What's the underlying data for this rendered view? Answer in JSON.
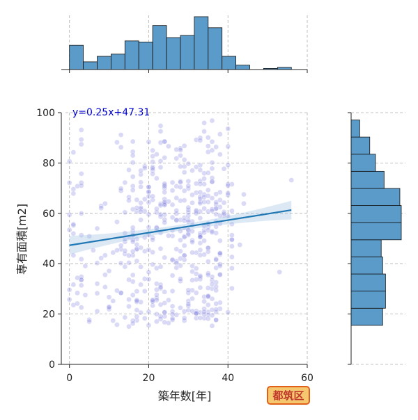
{
  "chart_data": {
    "type": "scatter",
    "xlabel": "築年数[年]",
    "ylabel": "専有面積[m2]",
    "xlim": [
      -1,
      60
    ],
    "ylim": [
      0,
      100
    ],
    "x_ticks": [
      0,
      20,
      40,
      60
    ],
    "y_ticks": [
      0,
      20,
      40,
      60,
      80,
      100
    ],
    "grid": true,
    "annotation": "y=0.25x+47.31",
    "badge": "都筑区",
    "colors": {
      "points": "#7a7ae0",
      "regression": "#1f77b4",
      "confidence_band": "#9cc0e3",
      "histogram": "#5b9bc9",
      "annotation": "#0000cc",
      "badge_fill": "#f5c870",
      "badge_border": "#e0601a",
      "badge_text": "#c0392b"
    },
    "regression": {
      "slope": 0.25,
      "intercept": 47.31,
      "x_range": [
        0,
        56
      ]
    },
    "x_histogram": {
      "bin_edges": [
        0,
        3.5,
        7,
        10.5,
        14,
        17.5,
        21,
        24.5,
        28,
        31.5,
        35,
        38.5,
        42,
        45.5,
        49,
        52.5,
        56
      ],
      "counts": [
        22,
        7,
        12,
        14,
        26,
        25,
        40,
        29,
        31,
        48,
        38,
        12,
        4,
        0,
        1,
        2
      ]
    },
    "y_histogram": {
      "bin_edges": [
        15.5,
        22.3,
        29.1,
        35.9,
        42.7,
        49.5,
        56.3,
        63.1,
        69.9,
        76.7,
        83.5,
        90.3,
        97.1
      ],
      "counts": [
        22,
        24,
        24,
        22,
        21,
        35,
        35,
        34,
        23,
        17,
        13,
        6
      ]
    }
  }
}
